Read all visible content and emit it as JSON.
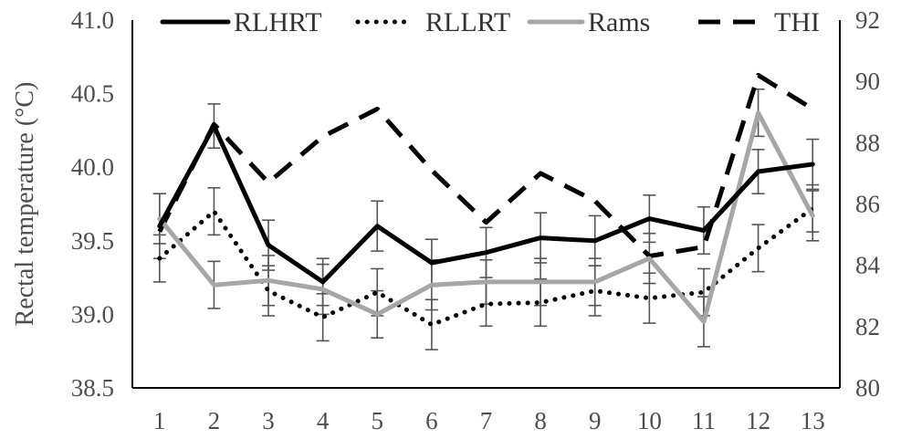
{
  "chart_data": {
    "type": "line",
    "x": [
      1,
      2,
      3,
      4,
      5,
      6,
      7,
      8,
      9,
      10,
      11,
      12,
      13
    ],
    "ylabel": "Rectal temperature (°C)",
    "y_left": {
      "min": 38.5,
      "max": 41.0,
      "step": 0.5
    },
    "y_right": {
      "min": 80,
      "max": 92,
      "step": 2
    },
    "left_tick_labels": [
      "38.5",
      "39.0",
      "39.5",
      "40.0",
      "40.5",
      "41.0"
    ],
    "right_tick_labels": [
      "80",
      "82",
      "84",
      "86",
      "88",
      "90",
      "92"
    ],
    "grid": false,
    "legend_position": "top",
    "series": [
      {
        "name": "RLHRT",
        "axis": "left",
        "style": "solid",
        "color": "#000000",
        "values": [
          39.6,
          40.28,
          39.47,
          39.22,
          39.6,
          39.35,
          39.42,
          39.52,
          39.5,
          39.65,
          39.57,
          39.97,
          40.02
        ],
        "errors": [
          0.22,
          0.15,
          0.17,
          0.16,
          0.17,
          0.16,
          0.17,
          0.17,
          0.17,
          0.16,
          0.16,
          0.15,
          0.17
        ]
      },
      {
        "name": "RLLRT",
        "axis": "left",
        "style": "dotted",
        "color": "#000000",
        "values": [
          39.38,
          39.7,
          39.16,
          38.98,
          39.15,
          38.93,
          39.07,
          39.08,
          39.16,
          39.11,
          39.15,
          39.45,
          39.72
        ],
        "errors": [
          0.16,
          0.16,
          0.17,
          0.16,
          0.16,
          0.17,
          0.15,
          0.16,
          0.17,
          0.17,
          0.16,
          0.16,
          0.16
        ]
      },
      {
        "name": "Rams",
        "axis": "left",
        "style": "solid",
        "color": "#a6a6a6",
        "values": [
          39.65,
          39.2,
          39.23,
          39.17,
          39.0,
          39.2,
          39.22,
          39.22,
          39.22,
          39.38,
          38.95,
          40.37,
          39.67
        ],
        "errors": [
          0.17,
          0.16,
          0.17,
          0.17,
          0.16,
          0.17,
          0.15,
          0.16,
          0.16,
          0.17,
          0.17,
          0.16,
          0.17
        ]
      },
      {
        "name": "THI",
        "axis": "right",
        "style": "dashed",
        "color": "#000000",
        "values": [
          85.1,
          88.6,
          86.7,
          88.2,
          89.1,
          87.1,
          85.4,
          87.0,
          86.1,
          84.3,
          84.6,
          90.2,
          89.1
        ],
        "errors": null
      }
    ]
  }
}
